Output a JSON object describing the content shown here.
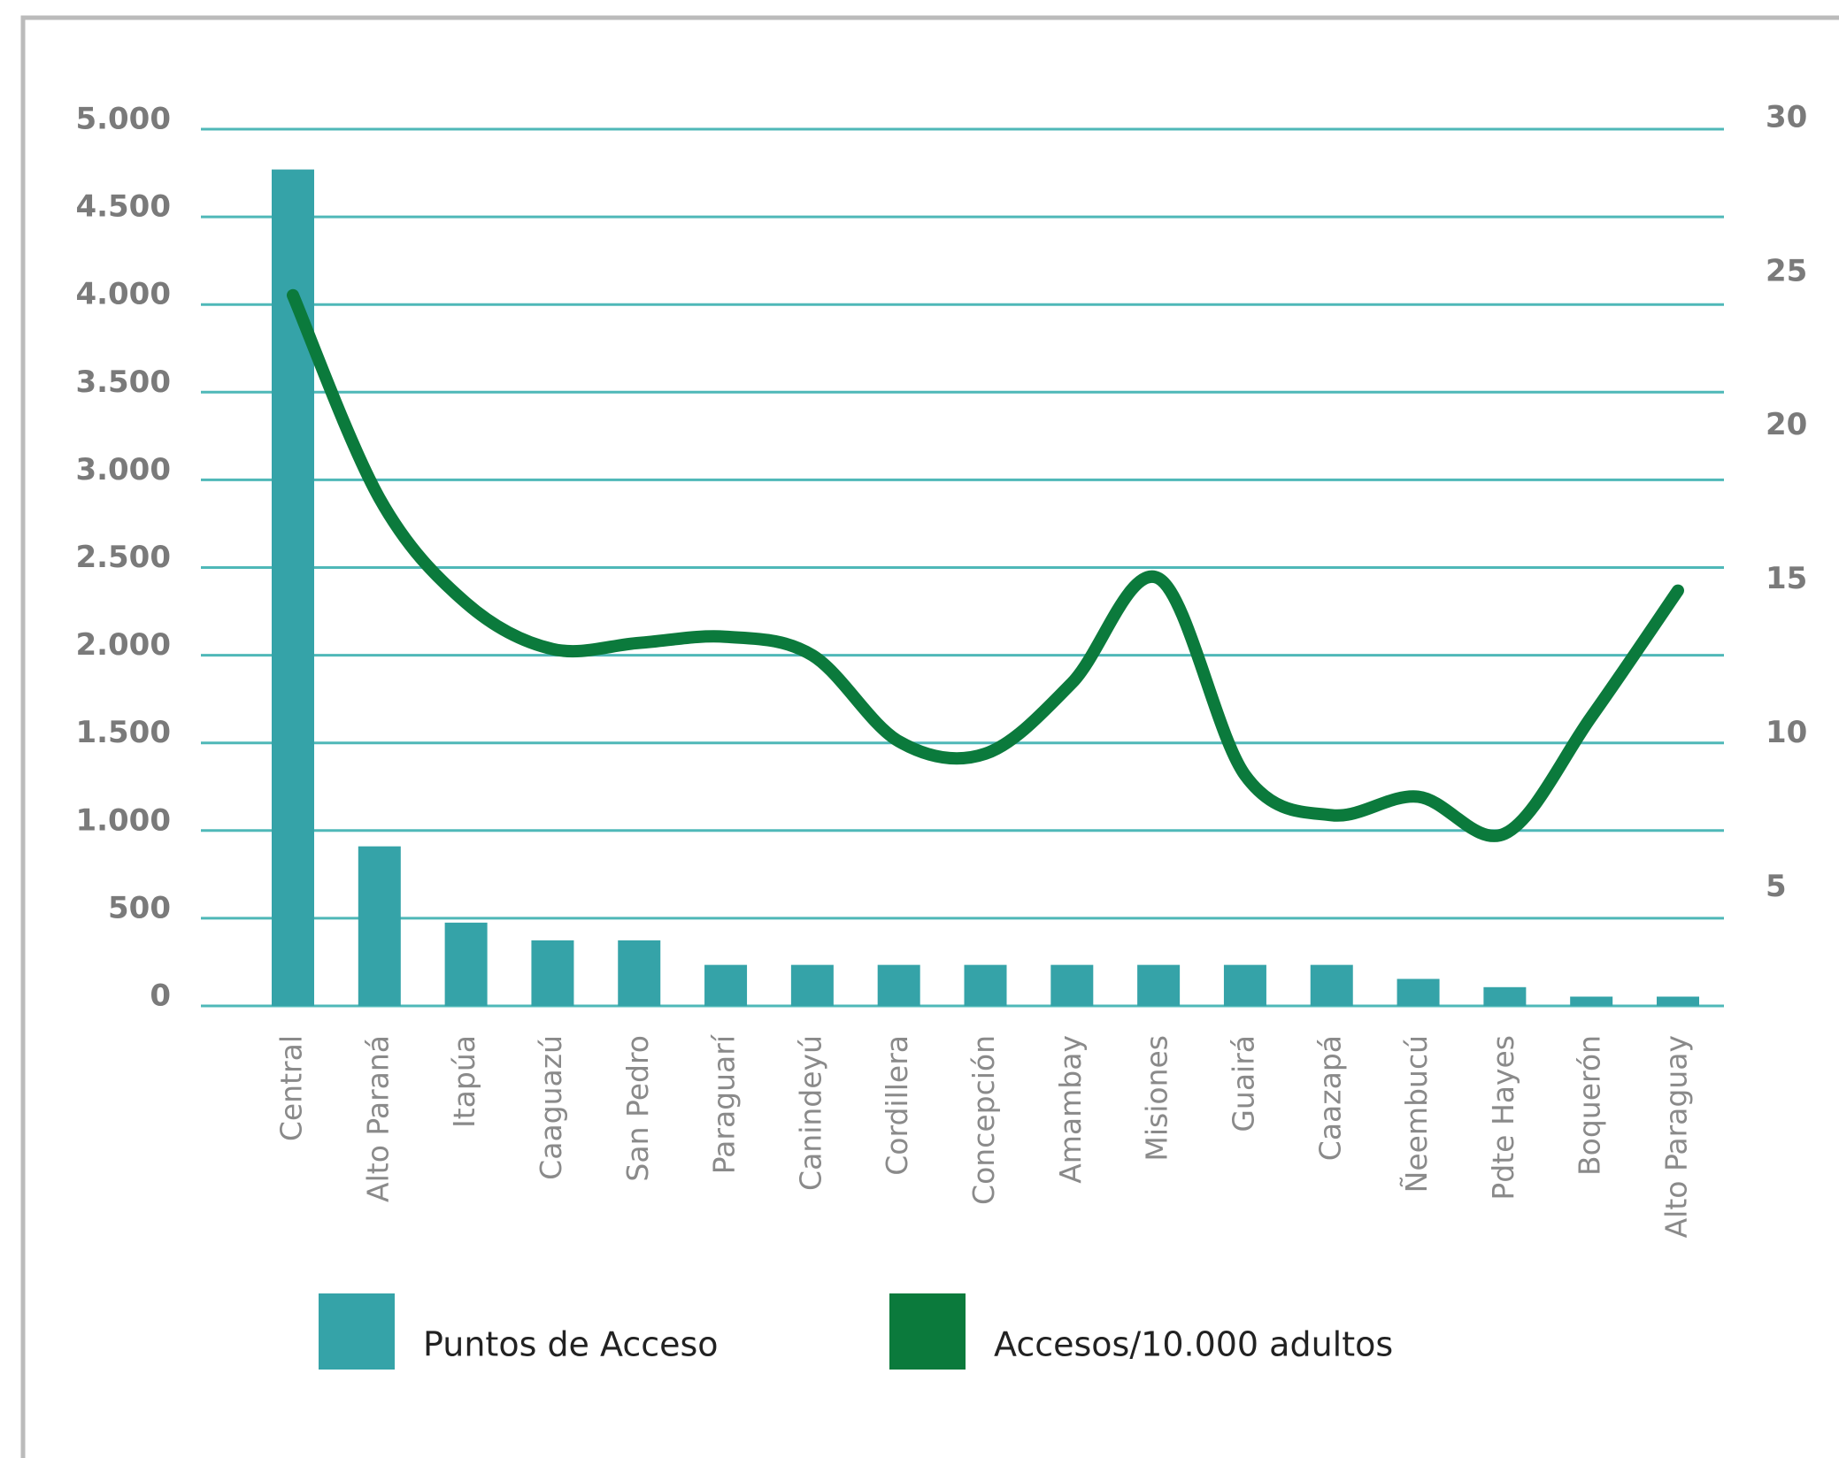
{
  "chart_data": {
    "type": "bar-line",
    "categories": [
      "Central",
      "Alto Paraná",
      "Itapúa",
      "Caaguazú",
      "San Pedro",
      "Paraguarí",
      "Canindeyú",
      "Cordillera",
      "Concepción",
      "Amambay",
      "Misiones",
      "Guairá",
      "Caazapá",
      "Ñeembucú",
      "Pdte Hayes",
      "Boquerón",
      "Alto Paraguay"
    ],
    "series": [
      {
        "name": "Puntos de Acceso",
        "type": "bar",
        "color": "#35a3a8",
        "values": [
          4770,
          910,
          475,
          374,
          374,
          234,
          234,
          234,
          234,
          234,
          234,
          234,
          234,
          154,
          107,
          53,
          53
        ]
      },
      {
        "name": "Accesos/10.000 adultos",
        "type": "line",
        "axis": "y2",
        "color": "#0b7a3c",
        "values": [
          24.6,
          18.0,
          14.6,
          13.1,
          13.3,
          13.5,
          12.9,
          10.1,
          9.7,
          12.0,
          15.4,
          9.0,
          7.7,
          8.3,
          7.1,
          10.9,
          15.0
        ]
      }
    ],
    "ylim": [
      0,
      5000
    ],
    "yticks": [
      {
        "value": 0,
        "label": "0"
      },
      {
        "value": 500,
        "label": "500"
      },
      {
        "value": 1000,
        "label": "1.000"
      },
      {
        "value": 1500,
        "label": "1.500"
      },
      {
        "value": 2000,
        "label": "2.000"
      },
      {
        "value": 2500,
        "label": "2.500"
      },
      {
        "value": 3000,
        "label": "3.000"
      },
      {
        "value": 3500,
        "label": "3.500"
      },
      {
        "value": 4000,
        "label": "4.000"
      },
      {
        "value": 4500,
        "label": "4.500"
      },
      {
        "value": 5000,
        "label": "5.000"
      }
    ],
    "y2lim": [
      1.5,
      30
    ],
    "y2ticks": [
      5,
      10,
      15,
      20,
      25,
      30
    ],
    "grid": true,
    "grid_color": "#4fb8b8",
    "legend": "bottom"
  }
}
